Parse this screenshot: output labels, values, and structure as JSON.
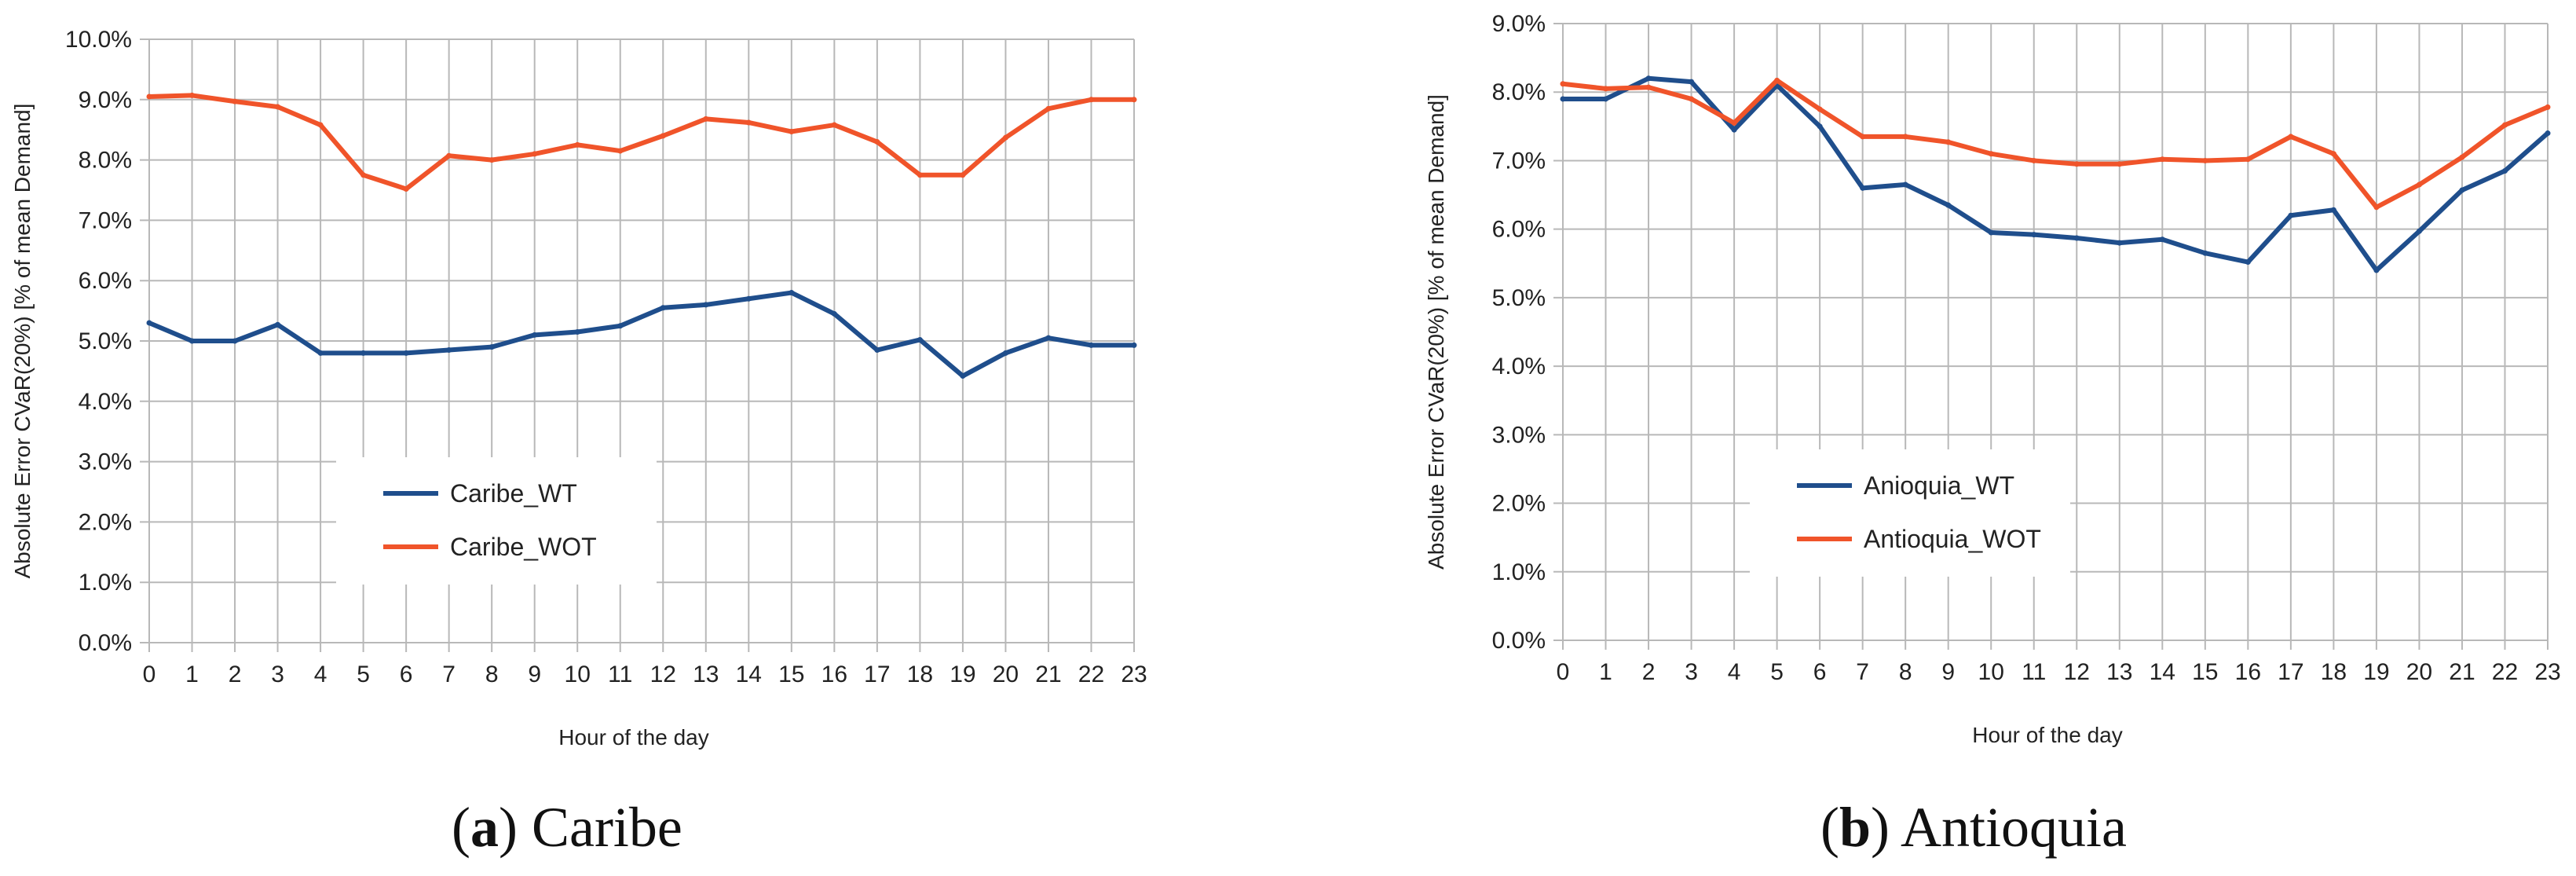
{
  "chart_data": [
    {
      "type": "line",
      "caption_letter": "a",
      "caption_name": "Caribe",
      "xlabel": "Hour of the day",
      "ylabel": "Absolute Error CVaR(20%)  [% of mean Demand]",
      "x": [
        0,
        1,
        2,
        3,
        4,
        5,
        6,
        7,
        8,
        9,
        10,
        11,
        12,
        13,
        14,
        15,
        16,
        17,
        18,
        19,
        20,
        21,
        22,
        23
      ],
      "ylim": [
        0,
        10
      ],
      "yticks": [
        "0.0%",
        "1.0%",
        "2.0%",
        "3.0%",
        "4.0%",
        "5.0%",
        "6.0%",
        "7.0%",
        "8.0%",
        "9.0%",
        "10.0%"
      ],
      "grid": true,
      "legend_position": "center-left",
      "series": [
        {
          "name": "Caribe_WT",
          "color": "#1f4e8c",
          "values": [
            5.3,
            5.0,
            5.0,
            5.27,
            4.8,
            4.8,
            4.8,
            4.85,
            4.9,
            5.1,
            5.15,
            5.25,
            5.55,
            5.6,
            5.7,
            5.8,
            5.45,
            4.85,
            5.02,
            4.42,
            4.8,
            5.05,
            4.93,
            4.93
          ]
        },
        {
          "name": "Caribe_WOT",
          "color": "#f0542a",
          "values": [
            9.05,
            9.07,
            8.97,
            8.88,
            8.58,
            7.75,
            7.52,
            8.07,
            8.0,
            8.1,
            8.25,
            8.15,
            8.4,
            8.68,
            8.62,
            8.47,
            8.58,
            8.3,
            7.75,
            7.75,
            8.37,
            8.85,
            9.0,
            9.0
          ]
        }
      ]
    },
    {
      "type": "line",
      "caption_letter": "b",
      "caption_name": "Antioquia",
      "xlabel": "Hour of the day",
      "ylabel": "Absolute Error CVaR(20%)  [% of mean Demand]",
      "x": [
        0,
        1,
        2,
        3,
        4,
        5,
        6,
        7,
        8,
        9,
        10,
        11,
        12,
        13,
        14,
        15,
        16,
        17,
        18,
        19,
        20,
        21,
        22,
        23
      ],
      "ylim": [
        0,
        9
      ],
      "yticks": [
        "0.0%",
        "1.0%",
        "2.0%",
        "3.0%",
        "4.0%",
        "5.0%",
        "6.0%",
        "7.0%",
        "8.0%",
        "9.0%"
      ],
      "grid": true,
      "legend_position": "center-left",
      "series": [
        {
          "name": "Anioquia_WT",
          "color": "#1f4e8c",
          "values": [
            7.9,
            7.9,
            8.2,
            8.15,
            7.45,
            8.1,
            7.5,
            6.6,
            6.65,
            6.35,
            5.95,
            5.92,
            5.87,
            5.8,
            5.85,
            5.65,
            5.52,
            6.2,
            6.28,
            5.4,
            5.97,
            6.57,
            6.85,
            7.4
          ]
        },
        {
          "name": "Antioquia_WOT",
          "color": "#f0542a",
          "values": [
            8.12,
            8.05,
            8.07,
            7.9,
            7.55,
            8.17,
            7.75,
            7.35,
            7.35,
            7.27,
            7.1,
            7.0,
            6.95,
            6.95,
            7.02,
            7.0,
            7.02,
            7.35,
            7.1,
            6.32,
            6.65,
            7.05,
            7.52,
            7.78
          ]
        }
      ]
    }
  ]
}
